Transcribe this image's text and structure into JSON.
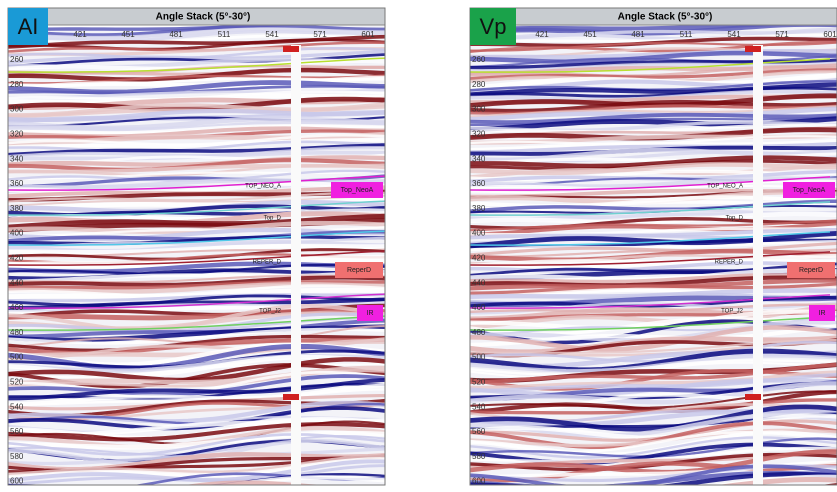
{
  "panels": [
    {
      "label": "AI",
      "title": "Angle Stack (5°-30°)",
      "xticks": [
        "421",
        "451",
        "481",
        "511",
        "541",
        "571",
        "601"
      ],
      "yticks": [
        "260",
        "280",
        "300",
        "320",
        "340",
        "360",
        "380",
        "400",
        "420",
        "440",
        "460",
        "480",
        "500",
        "520",
        "540",
        "560",
        "580",
        "600"
      ],
      "well_markers": [
        "TOP_NEO_A",
        "Top_D",
        "REPER_D",
        "TOP_J2"
      ],
      "horizons": [
        "Top_NeoA",
        "ReperD",
        "IR"
      ]
    },
    {
      "label": "Vp",
      "title": "Angle Stack (5°-30°)",
      "xticks": [
        "421",
        "451",
        "481",
        "511",
        "541",
        "571",
        "601"
      ],
      "yticks": [
        "260",
        "280",
        "300",
        "320",
        "340",
        "360",
        "380",
        "400",
        "420",
        "440",
        "460",
        "480",
        "500",
        "520",
        "540",
        "560",
        "580",
        "600"
      ],
      "well_markers": [
        "TOP_NEO_A",
        "Top_D",
        "REPER_D",
        "TOP_J2"
      ],
      "horizons": [
        "Top_NeoA",
        "ReperD",
        "IR"
      ]
    }
  ]
}
